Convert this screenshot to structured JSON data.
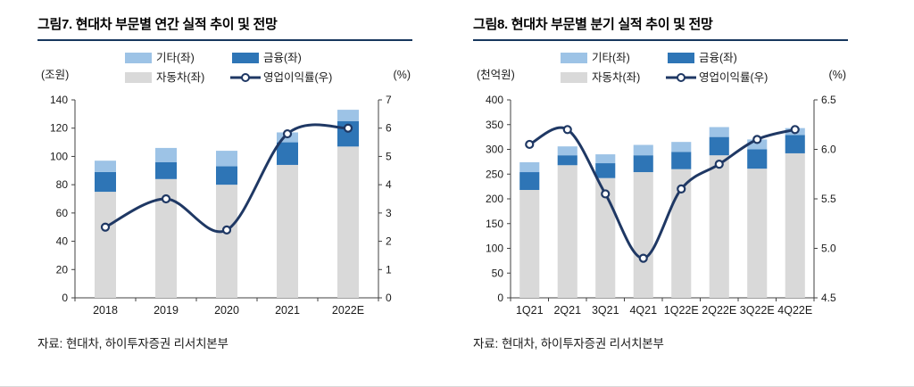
{
  "charts": [
    {
      "title": "그림7. 현대차 부문별 연간 실적 추이 및 전망",
      "source_label": "자료:",
      "source_text": "현대차, 하이투자증권 리서치본부",
      "chart_data": {
        "type": "bar",
        "subtype": "stacked-bar-with-line",
        "left_axis_unit": "(조원)",
        "right_axis_unit": "(%)",
        "categories": [
          "2018",
          "2019",
          "2020",
          "2021",
          "2022E"
        ],
        "series": [
          {
            "name": "자동차(좌)",
            "type": "bar",
            "axis": "left",
            "color": "#D9D9D9",
            "values": [
              75,
              84,
              80,
              94,
              107
            ]
          },
          {
            "name": "금융(좌)",
            "type": "bar",
            "axis": "left",
            "color": "#2E75B6",
            "values": [
              14,
              12,
              13,
              16,
              18
            ]
          },
          {
            "name": "기타(좌)",
            "type": "bar",
            "axis": "left",
            "color": "#9DC3E6",
            "values": [
              8,
              10,
              11,
              7,
              8
            ]
          },
          {
            "name": "영업이익률(우)",
            "type": "line",
            "axis": "right",
            "color": "#1F3864",
            "values": [
              2.5,
              3.5,
              2.4,
              5.8,
              6.0
            ]
          }
        ],
        "left_ylim": [
          0,
          140
        ],
        "left_tick_labels": [
          "0",
          "20",
          "40",
          "60",
          "80",
          "100",
          "120",
          "140"
        ],
        "right_ylim": [
          0,
          7
        ],
        "right_tick_labels": [
          "0",
          "1",
          "2",
          "3",
          "4",
          "5",
          "6",
          "7"
        ],
        "grid": false,
        "legend_position": "top",
        "legend": [
          {
            "label": "기타(좌)",
            "swatch": "bar",
            "color": "#9DC3E6"
          },
          {
            "label": "금융(좌)",
            "swatch": "bar",
            "color": "#2E75B6"
          },
          {
            "label": "자동차(좌)",
            "swatch": "bar",
            "color": "#D9D9D9"
          },
          {
            "label": "영업이익률(우)",
            "swatch": "line",
            "color": "#1F3864"
          }
        ]
      }
    },
    {
      "title": "그림8. 현대차 부문별 분기 실적 추이 및 전망",
      "source_label": "자료:",
      "source_text": "현대차, 하이투자증권 리서치본부",
      "chart_data": {
        "type": "bar",
        "subtype": "stacked-bar-with-line",
        "left_axis_unit": "(천억원)",
        "right_axis_unit": "(%)",
        "categories": [
          "1Q21",
          "2Q21",
          "3Q21",
          "4Q21",
          "1Q22E",
          "2Q22E",
          "3Q22E",
          "4Q22E"
        ],
        "series": [
          {
            "name": "자동차(좌)",
            "type": "bar",
            "axis": "left",
            "color": "#D9D9D9",
            "values": [
              218,
              268,
              242,
              254,
              260,
              288,
              261,
              292
            ]
          },
          {
            "name": "금융(좌)",
            "type": "bar",
            "axis": "left",
            "color": "#2E75B6",
            "values": [
              36,
              20,
              30,
              34,
              35,
              37,
              39,
              37
            ]
          },
          {
            "name": "기타(좌)",
            "type": "bar",
            "axis": "left",
            "color": "#9DC3E6",
            "values": [
              20,
              18,
              18,
              21,
              20,
              20,
              20,
              14
            ]
          },
          {
            "name": "영업이익률(우)",
            "type": "line",
            "axis": "right",
            "color": "#1F3864",
            "values": [
              6.05,
              6.2,
              5.55,
              4.9,
              5.6,
              5.85,
              6.1,
              6.2
            ]
          }
        ],
        "left_ylim": [
          0,
          400
        ],
        "left_tick_labels": [
          "0",
          "50",
          "100",
          "150",
          "200",
          "250",
          "300",
          "350",
          "400"
        ],
        "right_ylim": [
          4.5,
          6.5
        ],
        "right_tick_labels": [
          "4.5",
          "5.0",
          "5.5",
          "6.0",
          "6.5"
        ],
        "grid": false,
        "legend_position": "top",
        "legend": [
          {
            "label": "기타(좌)",
            "swatch": "bar",
            "color": "#9DC3E6"
          },
          {
            "label": "금융(좌)",
            "swatch": "bar",
            "color": "#2E75B6"
          },
          {
            "label": "자동차(좌)",
            "swatch": "bar",
            "color": "#D9D9D9"
          },
          {
            "label": "영업이익률(우)",
            "swatch": "line",
            "color": "#1F3864"
          }
        ]
      }
    }
  ],
  "colors": {
    "title_underline": "#17375E",
    "bar_auto": "#D9D9D9",
    "bar_finance": "#2E75B6",
    "bar_other": "#9DC3E6",
    "line_margin": "#1F3864",
    "axis": "#404040"
  }
}
